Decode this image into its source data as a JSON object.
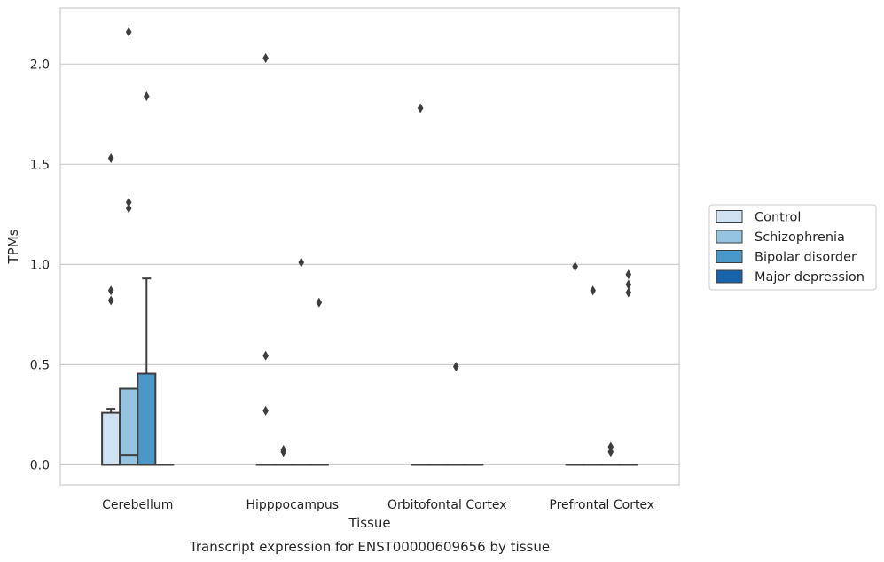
{
  "chart_data": {
    "type": "box",
    "title": "",
    "caption": "Transcript expression for ENST00000609656 by tissue",
    "xlabel": "Tissue",
    "ylabel": "TPMs",
    "ylim": [
      -0.1,
      2.28
    ],
    "yticks": [
      0.0,
      0.5,
      1.0,
      1.5,
      2.0
    ],
    "ytick_labels": [
      "0.0",
      "0.5",
      "1.0",
      "1.5",
      "2.0"
    ],
    "grid": "horizontal",
    "legend_position": "right",
    "categories": [
      "Cerebellum",
      "Hipppocampus",
      "Orbitofontal Cortex",
      "Prefrontal Cortex"
    ],
    "series": [
      {
        "name": "Control",
        "color": "#d0e1f2",
        "boxes": [
          {
            "q1": 0.0,
            "median": 0.0,
            "q3": 0.26,
            "whisker_low": 0.0,
            "whisker_high": 0.28,
            "outliers": [
              0.87,
              0.82,
              1.53
            ]
          },
          {
            "q1": 0.0,
            "median": 0.0,
            "q3": 0.0,
            "whisker_low": 0.0,
            "whisker_high": 0.0,
            "outliers": [
              0.27,
              0.545,
              2.03
            ]
          },
          {
            "q1": 0.0,
            "median": 0.0,
            "q3": 0.0,
            "whisker_low": 0.0,
            "whisker_high": 0.0,
            "outliers": [
              1.78
            ]
          },
          {
            "q1": 0.0,
            "median": 0.0,
            "q3": 0.0,
            "whisker_low": 0.0,
            "whisker_high": 0.0,
            "outliers": [
              0.99
            ]
          }
        ]
      },
      {
        "name": "Schizophrenia",
        "color": "#94c4df",
        "boxes": [
          {
            "q1": 0.0,
            "median": 0.05,
            "q3": 0.38,
            "whisker_low": 0.0,
            "whisker_high": 0.38,
            "outliers": [
              1.28,
              1.31,
              2.16
            ]
          },
          {
            "q1": 0.0,
            "median": 0.0,
            "q3": 0.0,
            "whisker_low": 0.0,
            "whisker_high": 0.0,
            "outliers": [
              0.065,
              0.075
            ]
          },
          {
            "q1": 0.0,
            "median": 0.0,
            "q3": 0.0,
            "whisker_low": 0.0,
            "whisker_high": 0.0,
            "outliers": []
          },
          {
            "q1": 0.0,
            "median": 0.0,
            "q3": 0.0,
            "whisker_low": 0.0,
            "whisker_high": 0.0,
            "outliers": [
              0.87
            ]
          }
        ]
      },
      {
        "name": "Bipolar disorder",
        "color": "#4a98c9",
        "boxes": [
          {
            "q1": 0.0,
            "median": 0.0,
            "q3": 0.455,
            "whisker_low": 0.0,
            "whisker_high": 0.93,
            "outliers": [
              1.84
            ]
          },
          {
            "q1": 0.0,
            "median": 0.0,
            "q3": 0.0,
            "whisker_low": 0.0,
            "whisker_high": 0.0,
            "outliers": [
              1.01
            ]
          },
          {
            "q1": 0.0,
            "median": 0.0,
            "q3": 0.0,
            "whisker_low": 0.0,
            "whisker_high": 0.0,
            "outliers": [
              0.49
            ]
          },
          {
            "q1": 0.0,
            "median": 0.0,
            "q3": 0.0,
            "whisker_low": 0.0,
            "whisker_high": 0.0,
            "outliers": [
              0.065,
              0.09
            ]
          }
        ]
      },
      {
        "name": "Major depression",
        "color": "#1764ab",
        "boxes": [
          {
            "q1": 0.0,
            "median": 0.0,
            "q3": 0.0,
            "whisker_low": 0.0,
            "whisker_high": 0.0,
            "outliers": []
          },
          {
            "q1": 0.0,
            "median": 0.0,
            "q3": 0.0,
            "whisker_low": 0.0,
            "whisker_high": 0.0,
            "outliers": [
              0.81
            ]
          },
          {
            "q1": 0.0,
            "median": 0.0,
            "q3": 0.0,
            "whisker_low": 0.0,
            "whisker_high": 0.0,
            "outliers": []
          },
          {
            "q1": 0.0,
            "median": 0.0,
            "q3": 0.0,
            "whisker_low": 0.0,
            "whisker_high": 0.0,
            "outliers": [
              0.86,
              0.9,
              0.95
            ]
          }
        ]
      }
    ]
  }
}
